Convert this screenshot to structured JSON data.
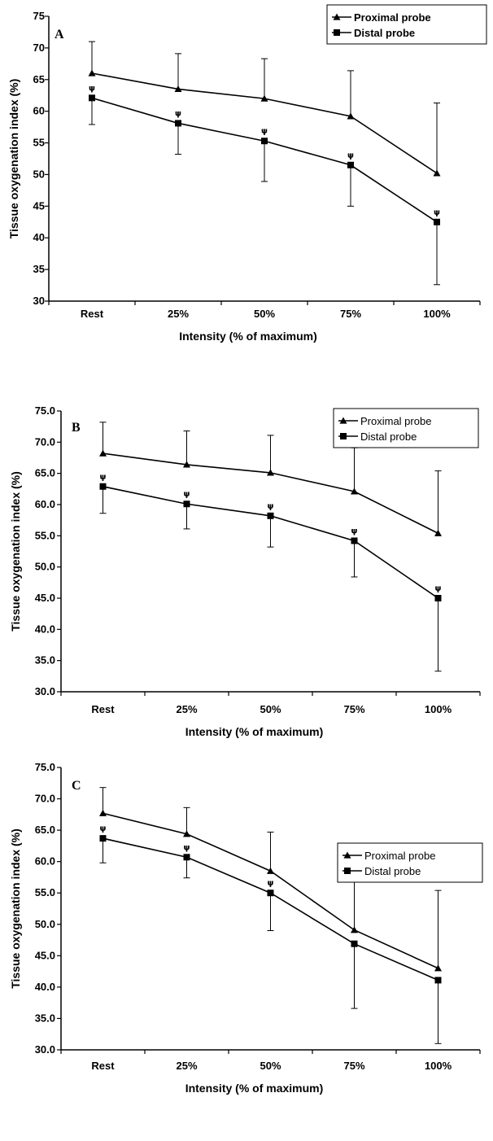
{
  "chart_data": [
    {
      "type": "line",
      "panel": "A",
      "xlabel": "Intensity (% of maximum)",
      "ylabel": "Tissue oxygenation index (%)",
      "categories": [
        "Rest",
        "25%",
        "50%",
        "75%",
        "100%"
      ],
      "ylim": [
        30,
        75
      ],
      "yticks": [
        "30",
        "35",
        "40",
        "45",
        "50",
        "55",
        "60",
        "65",
        "70",
        "75"
      ],
      "tick_values": [
        30,
        35,
        40,
        45,
        50,
        55,
        60,
        65,
        70,
        75
      ],
      "legend": {
        "placement": "top-right",
        "bold": true
      },
      "significance_symbol": "ψ",
      "series": [
        {
          "name": "Proximal probe",
          "marker": "triangle",
          "values": [
            66.0,
            63.5,
            62.0,
            59.2,
            50.2
          ],
          "err_upper": [
            71.0,
            69.1,
            68.3,
            66.4,
            61.3
          ],
          "err_lower": []
        },
        {
          "name": "Distal probe",
          "marker": "square",
          "values": [
            62.1,
            58.1,
            55.3,
            51.5,
            42.5
          ],
          "err_upper": [],
          "err_lower": [
            57.9,
            53.2,
            48.9,
            45.0,
            32.6
          ],
          "significant": [
            true,
            true,
            true,
            true,
            true
          ]
        }
      ]
    },
    {
      "type": "line",
      "panel": "B",
      "xlabel": "Intensity (% of maximum)",
      "ylabel": "Tissue oxygenation index (%)",
      "categories": [
        "Rest",
        "25%",
        "50%",
        "75%",
        "100%"
      ],
      "ylim": [
        30,
        75
      ],
      "yticks": [
        "30.0",
        "35.0",
        "40.0",
        "45.0",
        "50.0",
        "55.0",
        "60.0",
        "65.0",
        "70.0",
        "75.0"
      ],
      "tick_values": [
        30,
        35,
        40,
        45,
        50,
        55,
        60,
        65,
        70,
        75
      ],
      "legend": {
        "placement": "top-right",
        "bold": false
      },
      "significance_symbol": "ψ",
      "series": [
        {
          "name": "Proximal probe",
          "marker": "triangle",
          "values": [
            68.2,
            66.4,
            65.1,
            62.1,
            55.4
          ],
          "err_upper": [
            73.2,
            71.8,
            71.1,
            69.1,
            65.4
          ],
          "err_lower": []
        },
        {
          "name": "Distal probe",
          "marker": "square",
          "values": [
            62.9,
            60.1,
            58.2,
            54.2,
            45.0
          ],
          "err_upper": [],
          "err_lower": [
            58.6,
            56.1,
            53.2,
            48.4,
            33.3
          ],
          "significant": [
            true,
            true,
            true,
            true,
            true
          ]
        }
      ]
    },
    {
      "type": "line",
      "panel": "C",
      "xlabel": "Intensity (% of maximum)",
      "ylabel": "Tissue oxygenation index (%)",
      "categories": [
        "Rest",
        "25%",
        "50%",
        "75%",
        "100%"
      ],
      "ylim": [
        30,
        75
      ],
      "yticks": [
        "30.0",
        "35.0",
        "40.0",
        "45.0",
        "50.0",
        "55.0",
        "60.0",
        "65.0",
        "70.0",
        "75.0"
      ],
      "tick_values": [
        30,
        35,
        40,
        45,
        50,
        55,
        60,
        65,
        70,
        75
      ],
      "legend": {
        "placement": "right",
        "bold": false
      },
      "significance_symbol": "ψ",
      "series": [
        {
          "name": "Proximal probe",
          "marker": "triangle",
          "values": [
            67.7,
            64.4,
            58.5,
            49.1,
            43.0
          ],
          "err_upper": [
            71.8,
            68.6,
            64.7,
            59.1,
            55.4
          ],
          "err_lower": []
        },
        {
          "name": "Distal probe",
          "marker": "square",
          "values": [
            63.7,
            60.7,
            55.0,
            46.9,
            41.1
          ],
          "err_upper": [],
          "err_lower": [
            59.8,
            57.4,
            49.0,
            36.6,
            31.0
          ],
          "significant": [
            true,
            true,
            true,
            false,
            false
          ]
        }
      ]
    }
  ]
}
